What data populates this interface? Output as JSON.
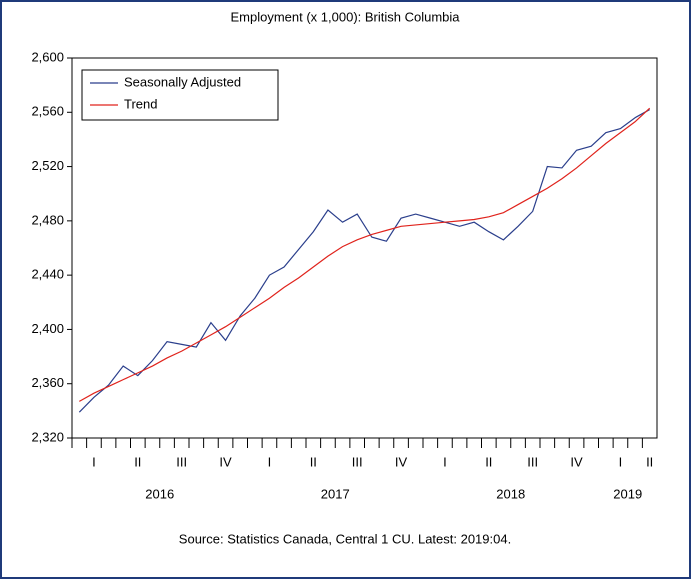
{
  "chart_data": {
    "type": "line",
    "title": "Employment (x 1,000): British Columbia",
    "source": "Source:  Statistics Canada, Central 1 CU. Latest: 2019:04.",
    "categories": [
      null,
      null,
      null,
      null,
      null,
      null,
      null,
      null,
      null,
      null,
      null,
      null,
      null,
      null,
      null,
      null,
      null,
      null,
      null,
      null,
      null,
      null,
      null,
      null,
      null,
      null,
      null,
      null,
      null,
      null,
      null,
      null,
      null,
      null,
      null,
      null,
      null,
      null,
      null,
      null
    ],
    "quarter_labels": [
      "I",
      "II",
      "III",
      "IV",
      "I",
      "II",
      "III",
      "IV",
      "I",
      "II",
      "III",
      "IV",
      "I",
      "II"
    ],
    "year_labels": [
      "2016",
      "2017",
      "2018",
      "2019"
    ],
    "series": [
      {
        "name": "Seasonally Adjusted",
        "color": "#2b3f8c",
        "values": [
          2339,
          2350,
          2359,
          2373,
          2366,
          2377,
          2391,
          2389,
          2387,
          2405,
          2392,
          2410,
          2423,
          2440,
          2446,
          2459,
          2472,
          2488,
          2479,
          2485,
          2468,
          2465,
          2482,
          2485,
          2482,
          2479,
          2476,
          2479,
          2472,
          2466,
          2476,
          2487,
          2520,
          2519,
          2532,
          2535,
          2545,
          2548,
          2556,
          2562
        ]
      },
      {
        "name": "Trend",
        "color": "#e0231c",
        "values": [
          2347,
          2353,
          2358,
          2363,
          2368,
          2373,
          2379,
          2384,
          2390,
          2396,
          2402,
          2409,
          2416,
          2423,
          2431,
          2438,
          2446,
          2454,
          2461,
          2466,
          2470,
          2473,
          2476,
          2477,
          2478,
          2479,
          2480,
          2481,
          2483,
          2486,
          2492,
          2498,
          2504,
          2511,
          2519,
          2528,
          2537,
          2545,
          2553,
          2563
        ]
      }
    ],
    "ylim": [
      2320,
      2600
    ],
    "yticks": [
      {
        "value": 2320,
        "label": "2,320"
      },
      {
        "value": 2360,
        "label": "2,360"
      },
      {
        "value": 2400,
        "label": "2,400"
      },
      {
        "value": 2440,
        "label": "2,440"
      },
      {
        "value": 2480,
        "label": "2,480"
      },
      {
        "value": 2520,
        "label": "2,520"
      },
      {
        "value": 2560,
        "label": "2,560"
      },
      {
        "value": 2600,
        "label": "2,600"
      }
    ],
    "legend": "upper left",
    "grid": false
  }
}
